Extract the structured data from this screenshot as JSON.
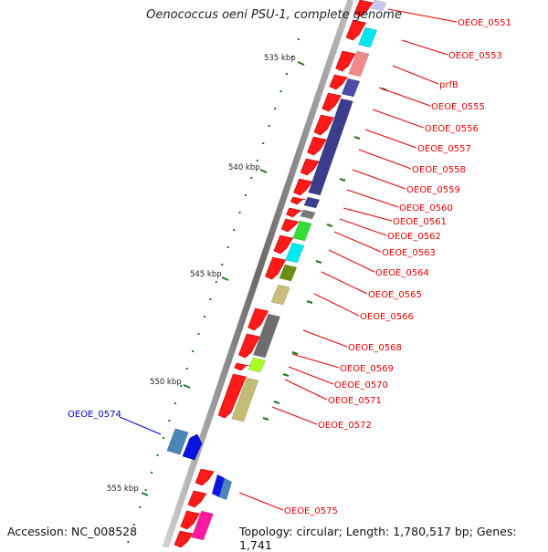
{
  "header": {
    "title": "Oenococcus oeni PSU-1, complete genome"
  },
  "footer": {
    "accession": "Accession: NC_008528",
    "topology": "Topology: circular; Length: 1,780,517 bp; Genes: 1,741"
  },
  "scale_labels": [
    "535 kbp",
    "540 kbp",
    "545 kbp",
    "550 kbp",
    "555 kbp"
  ],
  "gene_labels": [
    "OEOE_0551",
    "OEOE_0553",
    "prfB",
    "OEOE_0555",
    "OEOE_0556",
    "OEOE_0557",
    "OEOE_0558",
    "OEOE_0559",
    "OEOE_0560",
    "OEOE_0561",
    "OEOE_0562",
    "OEOE_0563",
    "OEOE_0564",
    "OEOE_0565",
    "OEOE_0566",
    "OEOE_0568",
    "OEOE_0569",
    "OEOE_0570",
    "OEOE_0571",
    "OEOE_0572",
    "OEOE_0575"
  ],
  "highlight_label": "OEOE_0574",
  "colors": {
    "forward_gene": "#ff0000",
    "label_red": "#e00000",
    "label_blue": "#0000cc",
    "backbone": "#7a7a7a",
    "tick": "#1a7a1a"
  }
}
